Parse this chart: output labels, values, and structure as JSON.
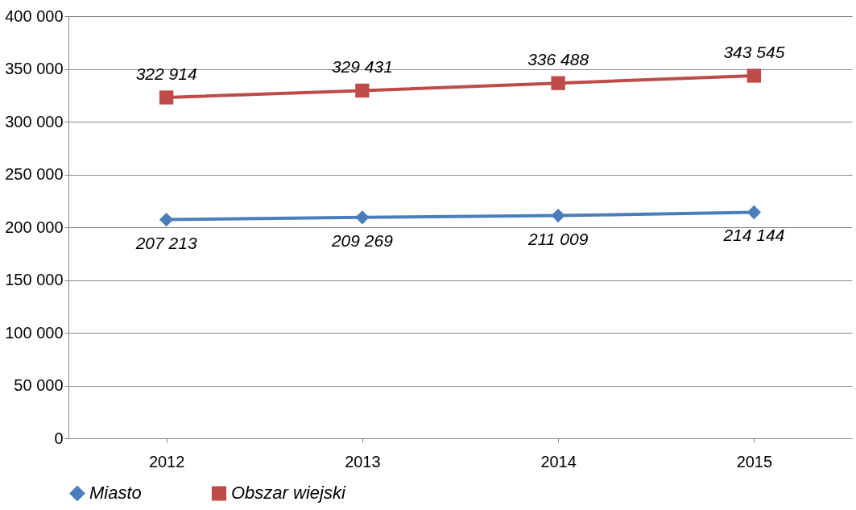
{
  "chart_data": {
    "type": "line",
    "categories": [
      "2012",
      "2013",
      "2014",
      "2015"
    ],
    "series": [
      {
        "name": "Miasto",
        "color": "#4a7ebb",
        "values": [
          207213,
          209269,
          211009,
          214144
        ],
        "marker": "diamond",
        "value_labels": [
          "207 213",
          "209 269",
          "211 009",
          "214 144"
        ]
      },
      {
        "name": "Obszar wiejski",
        "color": "#be4b48",
        "values": [
          322914,
          329431,
          336488,
          343545
        ],
        "marker": "square",
        "value_labels": [
          "322 914",
          "329 431",
          "336 488",
          "343 545"
        ]
      }
    ],
    "ylim": [
      0,
      400000
    ],
    "yticks": [
      {
        "value": 0,
        "label": "0"
      },
      {
        "value": 50000,
        "label": "50 000"
      },
      {
        "value": 100000,
        "label": "100 000"
      },
      {
        "value": 150000,
        "label": "150 000"
      },
      {
        "value": 200000,
        "label": "200 000"
      },
      {
        "value": 250000,
        "label": "250 000"
      },
      {
        "value": 300000,
        "label": "300 000"
      },
      {
        "value": 350000,
        "label": "350 000"
      },
      {
        "value": 400000,
        "label": "400 000"
      }
    ],
    "grid": "y",
    "legend": "bottom",
    "line_style": "solid"
  }
}
